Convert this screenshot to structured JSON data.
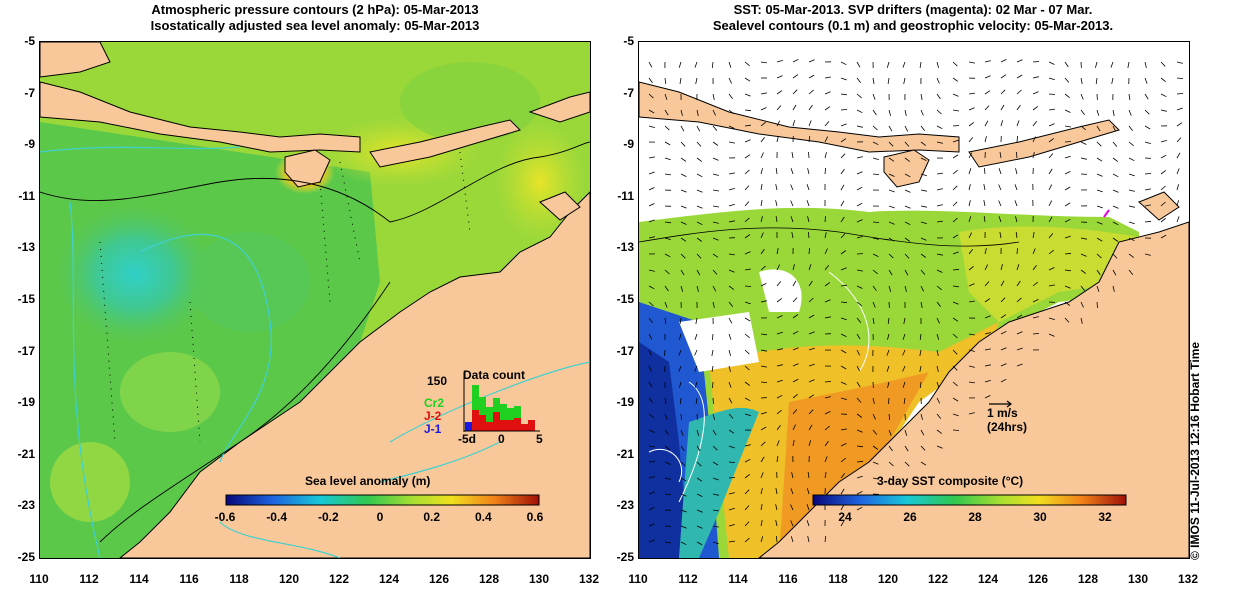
{
  "left_panel": {
    "title_line1": "Atmospheric pressure contours (2 hPa): 05-Mar-2013",
    "title_line2": "Isostatically adjusted sea level anomaly: 05-Mar-2013",
    "colorbar_title": "Sea level anomaly (m)",
    "colorbar_ticks": [
      "-0.6",
      "-0.4",
      "-0.2",
      "0",
      "0.2",
      "0.4",
      "0.6"
    ],
    "data_count": {
      "title": "Data count",
      "y_tick": "150",
      "series_labels": [
        "Cr2",
        "J-2",
        "J-1"
      ],
      "x_ticks": [
        "-5d",
        "0",
        "5"
      ]
    }
  },
  "right_panel": {
    "title_line1": "SST: 05-Mar-2013. SVP drifters (magenta): 02 Mar - 07 Mar.",
    "title_line2": "Sealevel contours (0.1 m) and geostrophic velocity: 05-Mar-2013.",
    "colorbar_title": "3-day SST composite (°C)",
    "colorbar_ticks": [
      "24",
      "26",
      "28",
      "30",
      "32"
    ],
    "scale_label_1": "1 m/s",
    "scale_label_2": "(24hrs)"
  },
  "axes": {
    "y_ticks": [
      "-5",
      "-7",
      "-9",
      "-11",
      "-13",
      "-15",
      "-17",
      "-19",
      "-21",
      "-23",
      "-25"
    ],
    "x_ticks": [
      "110",
      "112",
      "114",
      "116",
      "118",
      "120",
      "122",
      "124",
      "126",
      "128",
      "130",
      "132"
    ],
    "lon_range": [
      110,
      132
    ],
    "lat_range": [
      -25,
      -5
    ]
  },
  "credit": "© IMOS 11-Jul-2013 12:16 Hobart Time",
  "colors": {
    "land": "#f9c89a",
    "contour_cyan": "#40d0d0",
    "drifters": "#e000e0"
  }
}
